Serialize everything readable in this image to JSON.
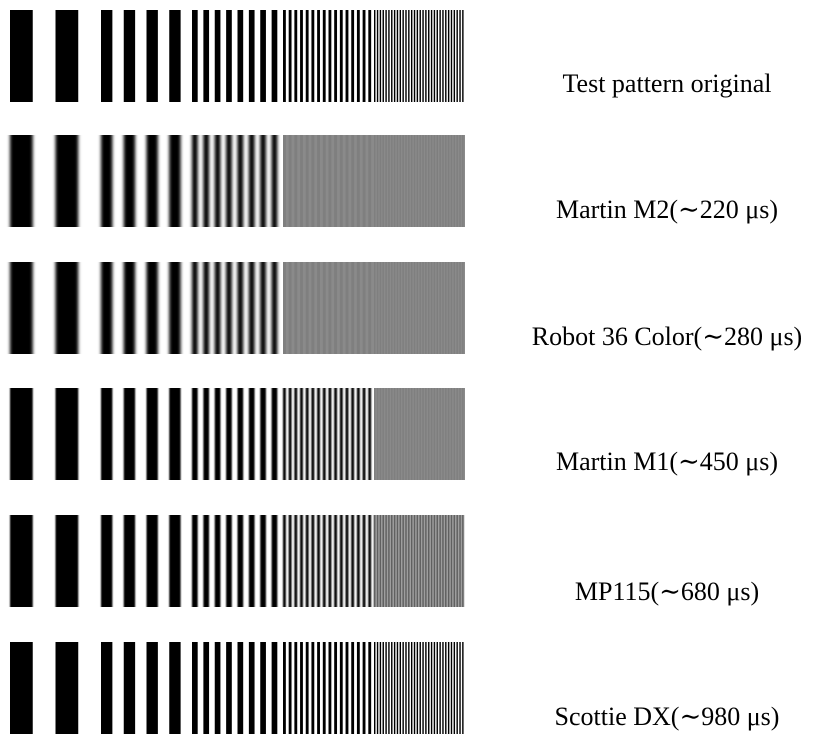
{
  "rows": [
    {
      "label": "Test pattern original"
    },
    {
      "label": "Martin M2(∼220 μs)"
    },
    {
      "label": "Robot 36 Color(∼280 μs)"
    },
    {
      "label": "Martin M1(∼450 μs)"
    },
    {
      "label": "MP115(∼680 μs)"
    },
    {
      "label": "Scottie DX(∼980 μs)"
    }
  ]
}
